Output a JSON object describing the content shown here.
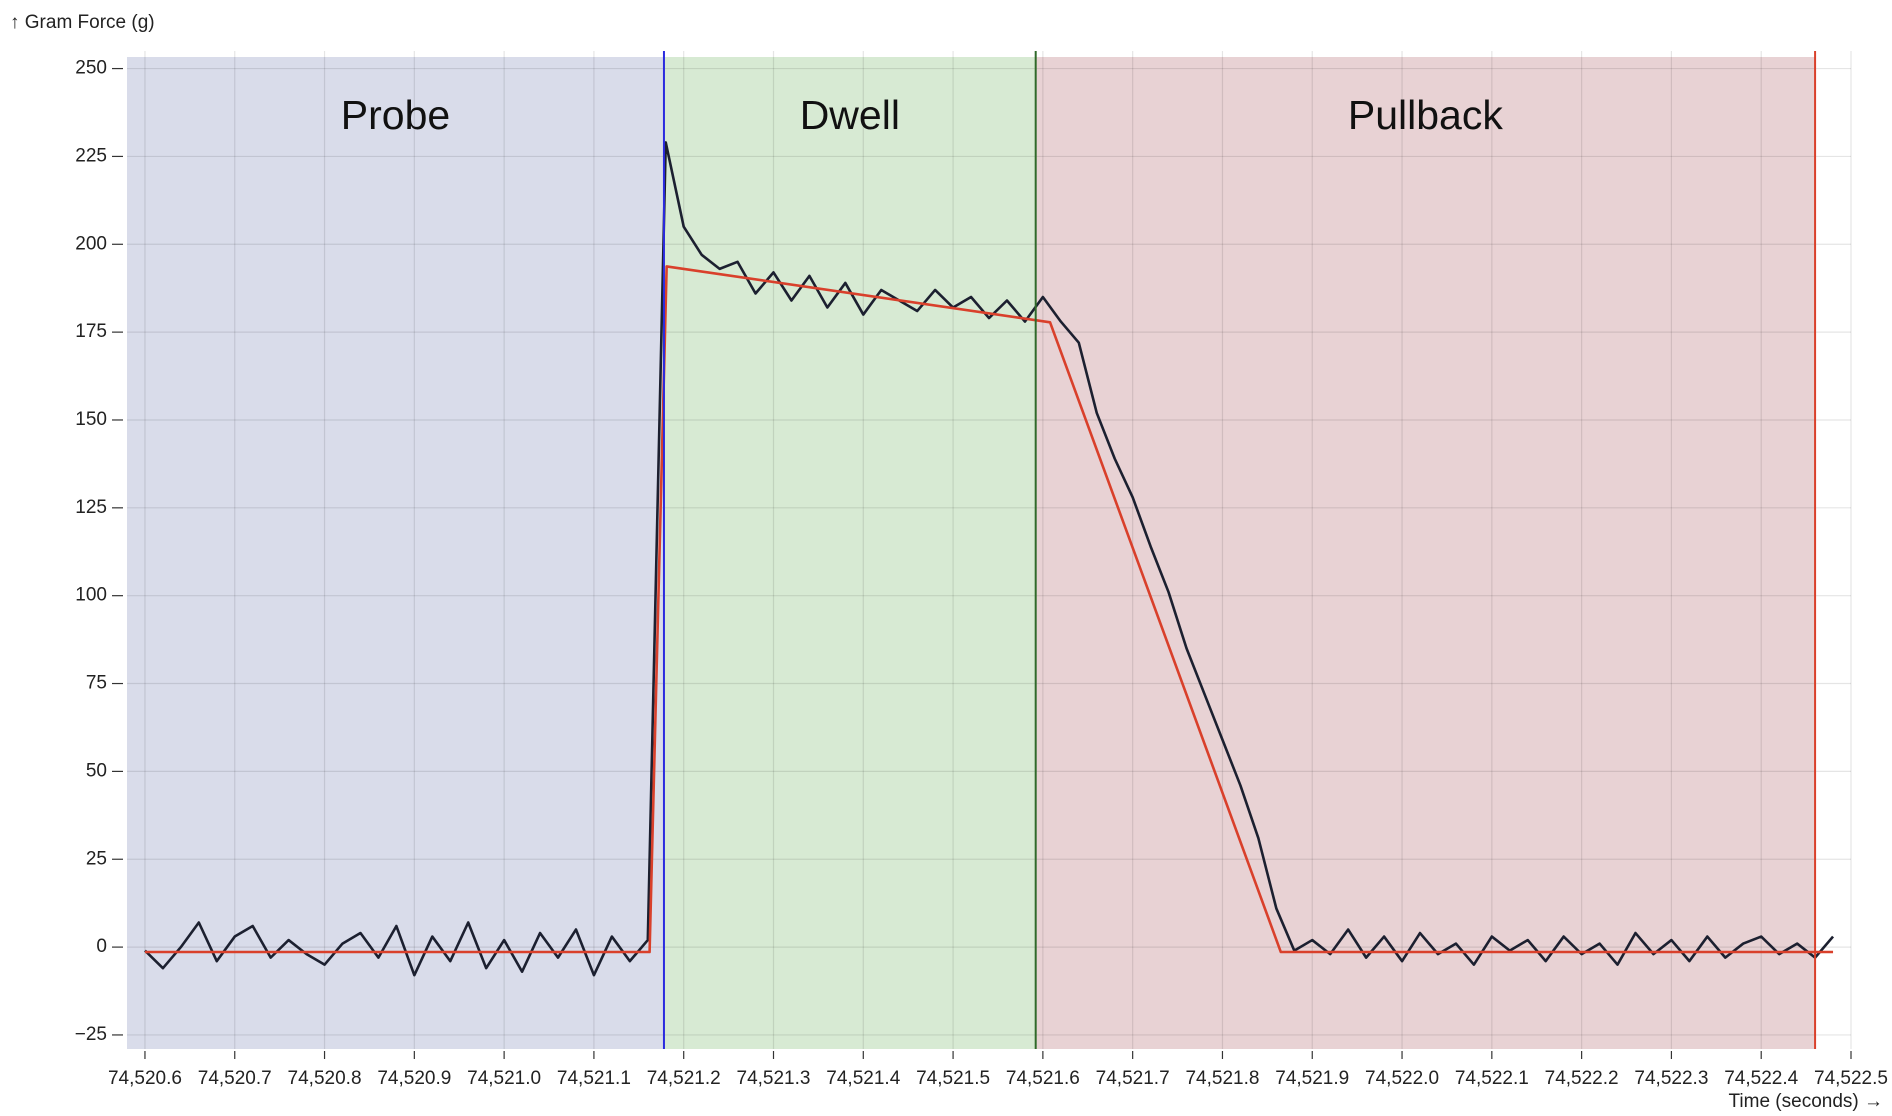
{
  "chart_data": {
    "type": "line",
    "y_label": "↑ Gram Force (g)",
    "x_label": "Time (seconds) →",
    "xlim": [
      74520.58,
      74522.5
    ],
    "ylim": [
      -29,
      255
    ],
    "xticks": [
      {
        "value": 74520.6,
        "label": "74,520.6"
      },
      {
        "value": 74520.7,
        "label": "74,520.7"
      },
      {
        "value": 74520.8,
        "label": "74,520.8"
      },
      {
        "value": 74520.9,
        "label": "74,520.9"
      },
      {
        "value": 74521.0,
        "label": "74,521.0"
      },
      {
        "value": 74521.1,
        "label": "74,521.1"
      },
      {
        "value": 74521.2,
        "label": "74,521.2"
      },
      {
        "value": 74521.3,
        "label": "74,521.3"
      },
      {
        "value": 74521.4,
        "label": "74,521.4"
      },
      {
        "value": 74521.5,
        "label": "74,521.5"
      },
      {
        "value": 74521.6,
        "label": "74,521.6"
      },
      {
        "value": 74521.7,
        "label": "74,521.7"
      },
      {
        "value": 74521.8,
        "label": "74,521.8"
      },
      {
        "value": 74521.9,
        "label": "74,521.9"
      },
      {
        "value": 74522.0,
        "label": "74,522.0"
      },
      {
        "value": 74522.1,
        "label": "74,522.1"
      },
      {
        "value": 74522.2,
        "label": "74,522.2"
      },
      {
        "value": 74522.3,
        "label": "74,522.3"
      },
      {
        "value": 74522.4,
        "label": "74,522.4"
      },
      {
        "value": 74522.5,
        "label": "74,522.5"
      }
    ],
    "yticks": [
      {
        "value": -25,
        "label": "−25"
      },
      0,
      25,
      50,
      75,
      100,
      125,
      150,
      175,
      200,
      225,
      250
    ],
    "grid": true,
    "regions": [
      {
        "label": "Probe",
        "start": 74520.58,
        "end": 74521.178,
        "color": "#d9dcea",
        "line_color": "#2b2bdf"
      },
      {
        "label": "Dwell",
        "start": 74521.178,
        "end": 74521.592,
        "color": "#d7ead3",
        "line_color": "#2f6a2a"
      },
      {
        "label": "Pullback",
        "start": 74521.592,
        "end": 74522.46,
        "color": "#e8d2d4",
        "line_color": "#d9402b"
      }
    ],
    "series": [
      {
        "color": "#1c2030",
        "x": [
          74520.6,
          74520.62,
          74520.64,
          74520.66,
          74520.68,
          74520.7,
          74520.72,
          74520.74,
          74520.76,
          74520.78,
          74520.8,
          74520.82,
          74520.84,
          74520.86,
          74520.88,
          74520.9,
          74520.92,
          74520.94,
          74520.96,
          74520.98,
          74521.0,
          74521.02,
          74521.04,
          74521.06,
          74521.08,
          74521.1,
          74521.12,
          74521.14,
          74521.16,
          74521.18,
          74521.2,
          74521.22,
          74521.24,
          74521.26,
          74521.28,
          74521.3,
          74521.32,
          74521.34,
          74521.36,
          74521.38,
          74521.4,
          74521.42,
          74521.44,
          74521.46,
          74521.48,
          74521.5,
          74521.52,
          74521.54,
          74521.56,
          74521.58,
          74521.6,
          74521.62,
          74521.64,
          74521.66,
          74521.68,
          74521.7,
          74521.72,
          74521.74,
          74521.76,
          74521.78,
          74521.8,
          74521.82,
          74521.84,
          74521.86,
          74521.88,
          74521.9,
          74521.92,
          74521.94,
          74521.96,
          74521.98,
          74522.0,
          74522.02,
          74522.04,
          74522.06,
          74522.08,
          74522.1,
          74522.12,
          74522.14,
          74522.16,
          74522.18,
          74522.2,
          74522.22,
          74522.24,
          74522.26,
          74522.28,
          74522.3,
          74522.32,
          74522.34,
          74522.36,
          74522.38,
          74522.4,
          74522.42,
          74522.44,
          74522.46,
          74522.48
        ],
        "values": [
          -1,
          -6,
          0,
          7,
          -4,
          3,
          6,
          -3,
          2,
          -2,
          -5,
          1,
          4,
          -3,
          6,
          -8,
          3,
          -4,
          7,
          -6,
          2,
          -7,
          4,
          -3,
          5,
          -8,
          3,
          -4,
          2,
          229,
          205,
          197,
          193,
          195,
          186,
          192,
          184,
          191,
          182,
          189,
          180,
          187,
          184,
          181,
          187,
          182,
          185,
          179,
          184,
          178,
          185,
          178,
          172,
          152,
          139,
          128,
          114,
          101,
          85,
          72,
          59,
          46,
          31,
          11,
          -1,
          2,
          -2,
          5,
          -3,
          3,
          -4,
          4,
          -2,
          1,
          -5,
          3,
          -1,
          2,
          -4,
          3,
          -2,
          1,
          -5,
          4,
          -2,
          2,
          -4,
          3,
          -3,
          1,
          3,
          -2,
          1,
          -3,
          3
        ]
      },
      {
        "color": "#d9402b",
        "x": [
          74520.6,
          74521.162,
          74521.181,
          74521.608,
          74521.865,
          74522.48
        ],
        "values": [
          -1.4,
          -1.4,
          193.7,
          177.8,
          -1.4,
          -1.4
        ]
      }
    ]
  }
}
